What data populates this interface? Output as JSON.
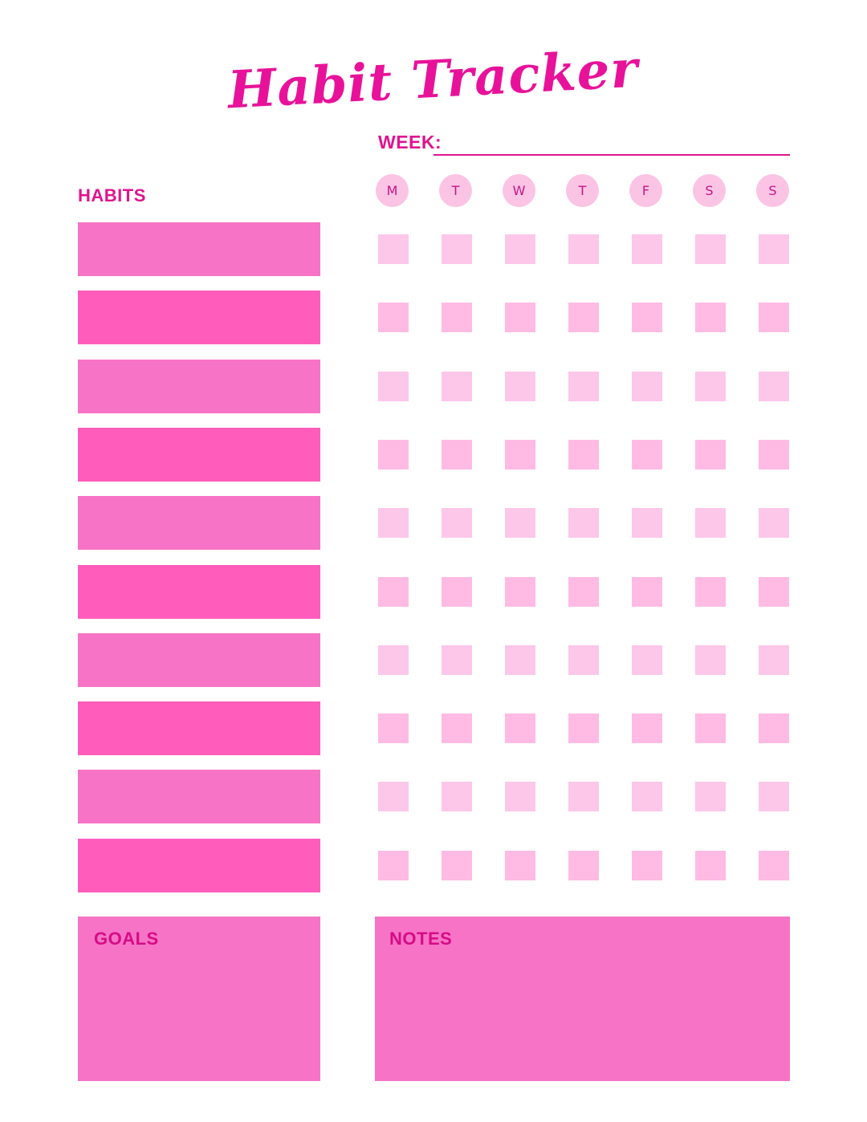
{
  "title": "Habit Tracker",
  "week_label": "WEEK:",
  "habits_label": "HABITS",
  "days": [
    "M",
    "T",
    "W",
    "T",
    "F",
    "S",
    "S"
  ],
  "habit_rows": 10,
  "goals_label": "GOALS",
  "notes_label": "NOTES",
  "colors": {
    "accent": "#e0148f",
    "habit_bar_light": "#f773c6",
    "habit_bar_dark": "#ff5cbc",
    "checkbox_light": "#fcc7e9",
    "checkbox_dark": "#ffbbe3",
    "day_circle": "#fbc4e4",
    "panel": "#f773c6"
  }
}
